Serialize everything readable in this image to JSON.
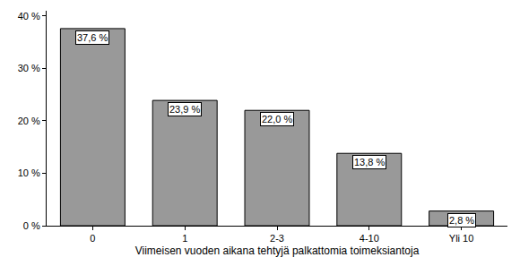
{
  "chart_data": {
    "type": "bar",
    "x_label": "Viimeisen vuoden aikana tehtyjä palkattomia toimeksiantoja",
    "categories": [
      "0",
      "1",
      "2-3",
      "4-10",
      "Yli 10"
    ],
    "values": [
      37.6,
      23.9,
      22.0,
      13.8,
      2.8
    ],
    "value_labels": [
      "37,6 %",
      "23,9 %",
      "22,0 %",
      "13,8 %",
      "2,8 %"
    ],
    "color": "#999999",
    "ylim": [
      0,
      41
    ],
    "yticks": [
      {
        "value": 0,
        "label": "0 %"
      },
      {
        "value": 10,
        "label": "10 %"
      },
      {
        "value": 20,
        "label": "20 %"
      },
      {
        "value": 30,
        "label": "30 %"
      },
      {
        "value": 40,
        "label": "40 %"
      }
    ],
    "grid": false,
    "data_labels": true
  }
}
